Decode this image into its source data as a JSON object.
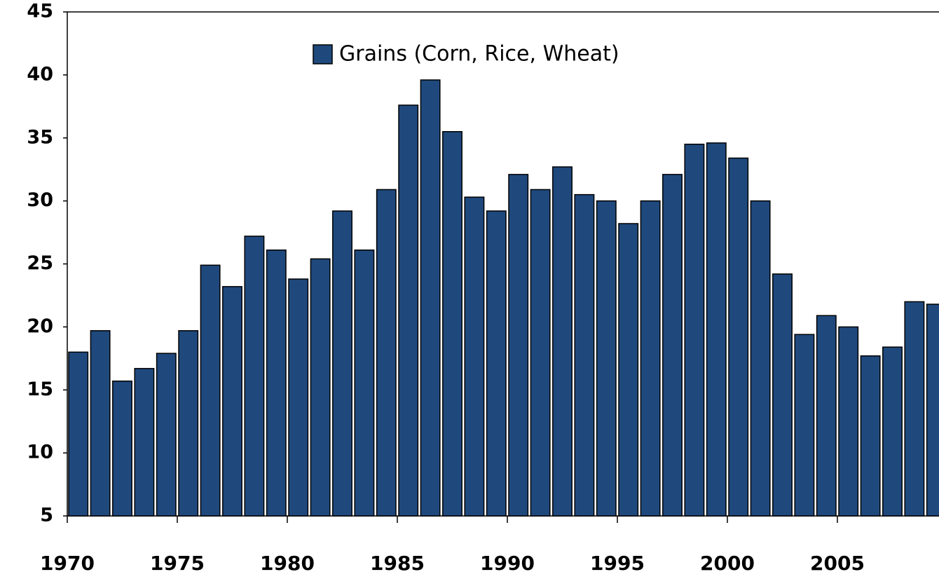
{
  "chart_data": {
    "type": "bar",
    "categories": [
      "1970",
      null,
      null,
      null,
      null,
      "1975",
      null,
      null,
      null,
      null,
      "1980",
      null,
      null,
      null,
      null,
      "1985",
      null,
      null,
      null,
      null,
      "1990",
      null,
      null,
      null,
      null,
      "1995",
      null,
      null,
      null,
      null,
      "2000",
      null,
      null,
      null,
      null,
      "2005",
      null,
      null,
      null,
      null
    ],
    "series": [
      {
        "name": "Grains (Corn, Rice, Wheat)",
        "color": "#1f497d",
        "values": [
          18.0,
          19.7,
          15.7,
          16.7,
          17.9,
          19.7,
          24.9,
          23.2,
          27.2,
          26.1,
          23.8,
          25.4,
          29.2,
          26.1,
          30.9,
          37.6,
          39.6,
          35.5,
          30.3,
          29.2,
          32.1,
          30.9,
          32.7,
          30.5,
          30.0,
          28.2,
          30.0,
          32.1,
          34.5,
          34.6,
          33.4,
          30.0,
          24.2,
          19.4,
          20.9,
          20.0,
          17.7,
          18.4,
          22.0,
          21.8
        ]
      }
    ],
    "ylim": [
      5,
      45
    ],
    "yticks": [
      5,
      10,
      15,
      20,
      25,
      30,
      35,
      40,
      45
    ],
    "legend": "top"
  }
}
